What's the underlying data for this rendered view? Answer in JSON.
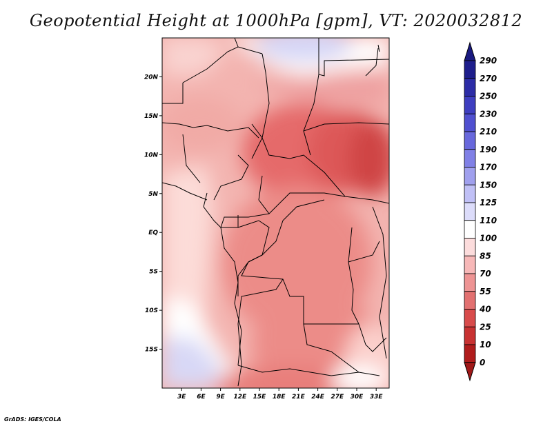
{
  "title": "Geopotential Height at 1000hPa [gpm], VT: 2020032812",
  "credit": "GrADS: IGES/COLA",
  "map": {
    "lat_labels": [
      "20N",
      "15N",
      "10N",
      "5N",
      "EQ",
      "5S",
      "10S",
      "15S"
    ],
    "lat_values": [
      20,
      15,
      10,
      5,
      0,
      -5,
      -10,
      -15
    ],
    "lon_labels": [
      "3E",
      "6E",
      "9E",
      "12E",
      "15E",
      "18E",
      "21E",
      "24E",
      "27E",
      "30E",
      "33E"
    ],
    "lon_values": [
      3,
      6,
      9,
      12,
      15,
      18,
      21,
      24,
      27,
      30,
      33
    ],
    "lon_range": [
      0,
      35
    ],
    "lat_range": [
      -20,
      25
    ]
  },
  "colorbar": {
    "levels": [
      "290",
      "270",
      "250",
      "230",
      "210",
      "190",
      "170",
      "150",
      "125",
      "110",
      "100",
      "85",
      "70",
      "55",
      "40",
      "25",
      "10",
      "0"
    ],
    "colors": [
      "#1e1e8c",
      "#2c2ca6",
      "#3e3ec0",
      "#5050d0",
      "#6868dc",
      "#8080e6",
      "#a0a0ee",
      "#c0c0f6",
      "#dcdcfa",
      "#ffffff",
      "#fcdcdc",
      "#f7b8b8",
      "#ee9494",
      "#e27070",
      "#d84b4b",
      "#c83232",
      "#b01c1c"
    ],
    "top_color": "#1a1a80",
    "bottom_color": "#a01818"
  }
}
